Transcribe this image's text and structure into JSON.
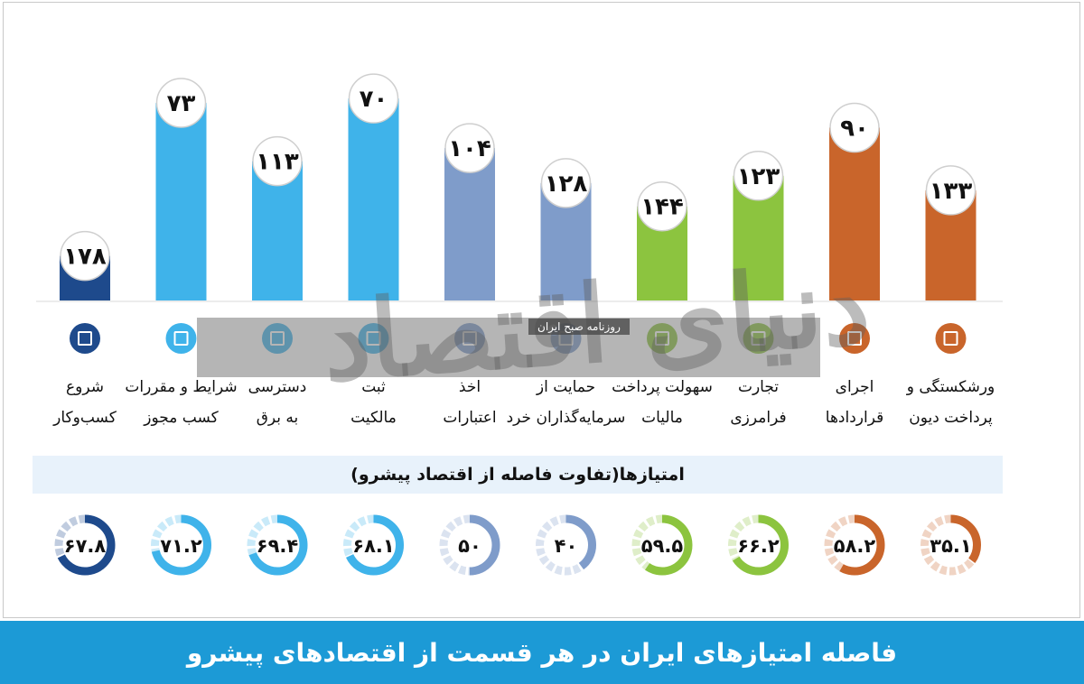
{
  "banner_title": "فاصله امتیازهای ایران در هر قسمت از اقتصادهای پیشرو",
  "score_header": "امتیازها(تفاوت فاصله از اقتصاد پیشرو)",
  "watermark": {
    "big_text": "دنیای اقتصاد",
    "small_text": "روزنامه صبح ایران"
  },
  "chart_data": {
    "type": "bar",
    "ylabel": "",
    "xlabel": "",
    "categories": [
      {
        "label_line1": "شروع",
        "label_line2": "کسب‌وکار",
        "icon": "building-icon",
        "color": "#1e4a8c",
        "rank": "۱۷۸",
        "score": "۶۷.۸",
        "rank_value": 178,
        "score_value": 67.8
      },
      {
        "label_line1": "شرایط و مقررات",
        "label_line2": "کسب مجوز",
        "icon": "tools-icon",
        "color": "#3fb3ea",
        "rank": "۷۳",
        "score": "۷۱.۲",
        "rank_value": 73,
        "score_value": 71.2
      },
      {
        "label_line1": "دسترسی",
        "label_line2": "به برق",
        "icon": "lightning-icon",
        "color": "#3fb3ea",
        "rank": "۱۱۳",
        "score": "۶۹.۴",
        "rank_value": 113,
        "score_value": 69.4
      },
      {
        "label_line1": "ثبت",
        "label_line2": "مالکیت",
        "icon": "buildings-icon",
        "color": "#3fb3ea",
        "rank": "۷۰",
        "score": "۶۸.۱",
        "rank_value": 70,
        "score_value": 68.1
      },
      {
        "label_line1": "اخذ",
        "label_line2": "اعتبارات",
        "icon": "wallet-icon",
        "color": "#7f9cca",
        "rank": "۱۰۴",
        "score": "۵۰",
        "rank_value": 104,
        "score_value": 50
      },
      {
        "label_line1": "حمایت از",
        "label_line2": "سرمایه‌گذاران خرد",
        "icon": "shield-icon",
        "color": "#7f9cca",
        "rank": "۱۲۸",
        "score": "۴۰",
        "rank_value": 128,
        "score_value": 40
      },
      {
        "label_line1": "سهولت پرداخت",
        "label_line2": "مالیات",
        "icon": "money-icon",
        "color": "#8cc43f",
        "rank": "۱۴۴",
        "score": "۵۹.۵",
        "rank_value": 144,
        "score_value": 59.5
      },
      {
        "label_line1": "تجارت",
        "label_line2": "فرامرزی",
        "icon": "truck-icon",
        "color": "#8cc43f",
        "rank": "۱۲۳",
        "score": "۶۶.۲",
        "rank_value": 123,
        "score_value": 66.2
      },
      {
        "label_line1": "اجرای",
        "label_line2": "قراردادها",
        "icon": "courthouse-icon",
        "color": "#c9652b",
        "rank": "۹۰",
        "score": "۵۸.۲",
        "rank_value": 90,
        "score_value": 58.2
      },
      {
        "label_line1": "ورشکستگی و",
        "label_line2": "پرداخت دیون",
        "icon": "gavel-icon",
        "color": "#c9652b",
        "rank": "۱۳۳",
        "score": "۳۵.۱",
        "rank_value": 133,
        "score_value": 35.1
      }
    ]
  }
}
